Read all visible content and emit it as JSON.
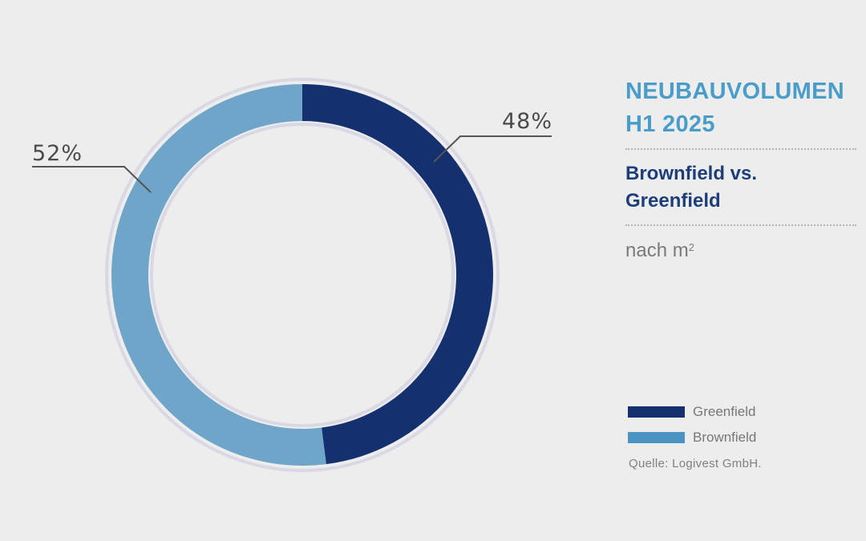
{
  "chart_data": {
    "type": "pie",
    "title": "NEUBAUVOLUMEN H1 2025",
    "subtitle": "Brownfield vs. Greenfield",
    "unit_prefix": "nach m",
    "unit_sup": "2",
    "slices": [
      {
        "name": "Greenfield",
        "value": 48,
        "label": "48%",
        "color": "#14306e"
      },
      {
        "name": "Brownfield",
        "value": 52,
        "label": "52%",
        "color": "#6fa5c8"
      }
    ],
    "legend": [
      {
        "label": "Greenfield",
        "color": "#14306e"
      },
      {
        "label": "Brownfield",
        "color": "#4a93c2"
      }
    ],
    "legend_placement": "bottom-right",
    "source": "Quelle: Logivest GmbH."
  },
  "title_line1": "NEUBAUVOLUMEN",
  "title_line2": "H1 2025",
  "subtitle_line1": "Brownfield vs.",
  "subtitle_line2": "Greenfield"
}
